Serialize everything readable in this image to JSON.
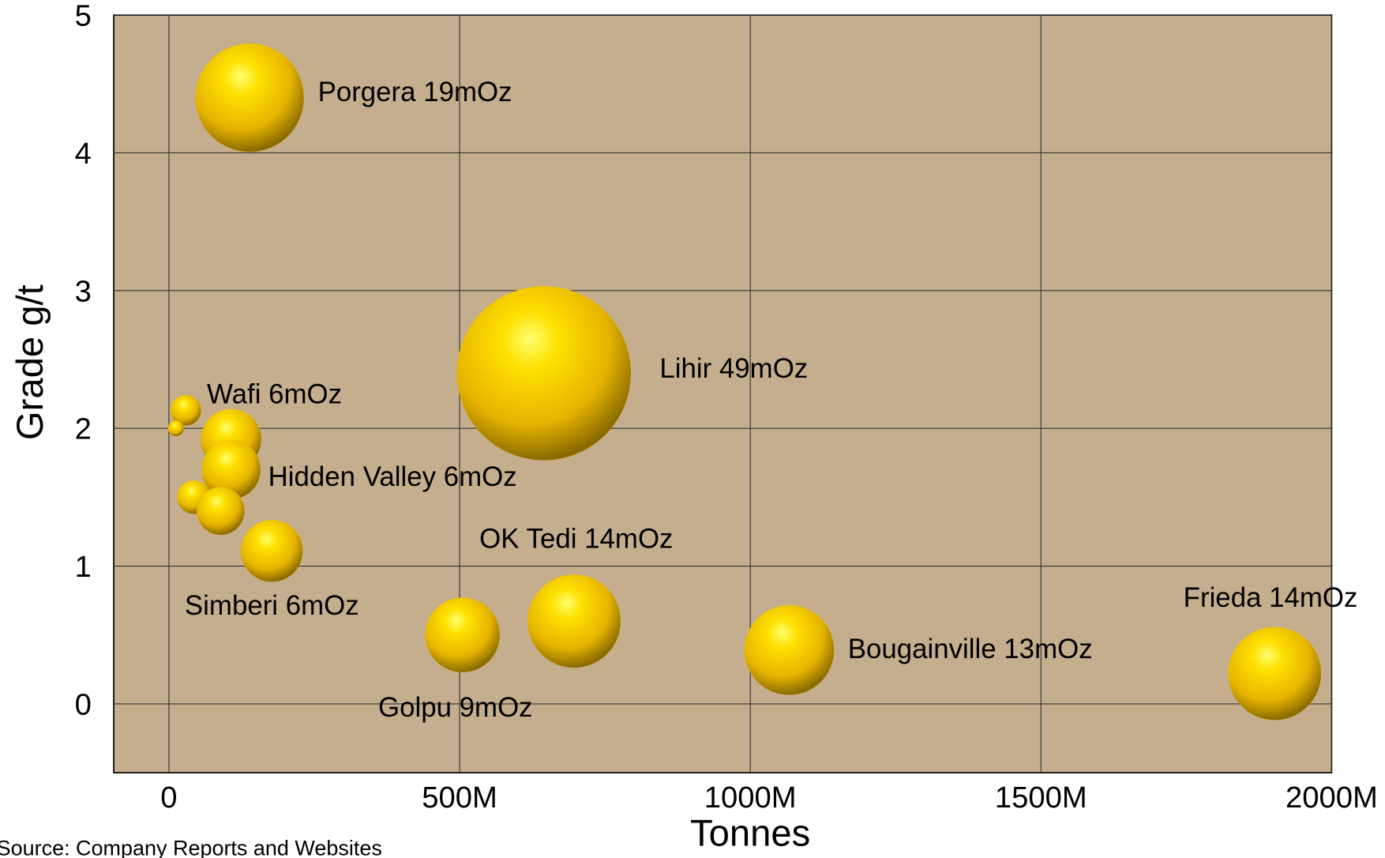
{
  "chart_data": {
    "type": "bubble",
    "x_label": "Tonnes",
    "y_label": "Grade g/t",
    "source": "Source: Company Reports and Websites",
    "x": [
      139000000,
      645000000,
      29000000,
      12000000,
      107000000,
      107000000,
      43000000,
      89000000,
      177000000,
      505000000,
      697000000,
      1067000000,
      1902000000
    ],
    "values": [
      4.4,
      2.4,
      2.13,
      2.0,
      1.92,
      1.7,
      1.5,
      1.4,
      1.11,
      0.5,
      0.6,
      0.39,
      0.22
    ],
    "sizes": [
      19,
      49,
      1.5,
      0.4,
      5.9,
      5.6,
      1.8,
      3.7,
      6.2,
      9,
      14,
      13,
      14
    ],
    "color": "#f2c200",
    "annotations": [
      "Porgera 19mOz",
      "Lihir 49mOz",
      "Wafi 6mOz",
      "Hidden Valley 6mOz",
      "OK Tedi 14mOz",
      "Simberi 6mOz",
      "Frieda 14mOz",
      "Bougainville 13mOz",
      "Golpu 9mOz"
    ],
    "xlim": [
      -95000000,
      2000000000
    ],
    "ylim": [
      -0.5,
      5
    ],
    "xticks": [
      0,
      {
        "value": 500000000,
        "label": "500M"
      },
      {
        "value": 1000000000,
        "label": "1000M"
      },
      {
        "value": 1500000000,
        "label": "1500M"
      },
      {
        "value": 2000000000,
        "label": "2000M"
      }
    ],
    "yticks": [
      0,
      1,
      2,
      3,
      4,
      5
    ],
    "grid": true,
    "background": "#c4ae8e"
  }
}
